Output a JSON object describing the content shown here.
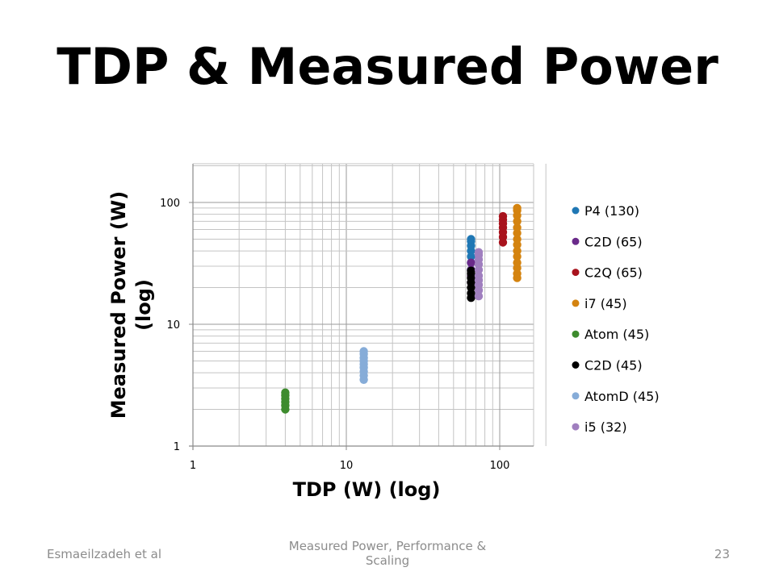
{
  "slide": {
    "title": "TDP & Measured Power",
    "footer_left": "Esmaeilzadeh et al",
    "footer_center": "Measured Power, Performance & Scaling",
    "page_number": "23"
  },
  "chart_data": {
    "type": "scatter",
    "xlabel": "TDP (W) (log)",
    "ylabel": "Measured Power (W) (log)",
    "x_scale": "log",
    "y_scale": "log",
    "xlim": [
      1,
      200
    ],
    "ylim": [
      1,
      200
    ],
    "x_ticks": [
      "1",
      "10",
      "100"
    ],
    "y_ticks": [
      "1",
      "10",
      "100"
    ],
    "grid": true,
    "legend": "right",
    "series": [
      {
        "name": "P4 (130)",
        "color": "#1f77b4",
        "x": 65,
        "y": [
          28,
          32,
          36,
          40,
          44,
          48,
          50
        ]
      },
      {
        "name": "C2D (65)",
        "color": "#6a2a8a",
        "x": 65,
        "y": [
          22,
          25,
          28,
          32
        ]
      },
      {
        "name": "C2Q (65)",
        "color": "#a8131d",
        "x": 105,
        "y": [
          47,
          52,
          57,
          62,
          67,
          72,
          77
        ]
      },
      {
        "name": "i7 (45)",
        "color": "#d4830f",
        "x": 130,
        "y": [
          24,
          26,
          29,
          32,
          36,
          40,
          45,
          50,
          56,
          62,
          70,
          78,
          86,
          90
        ]
      },
      {
        "name": "Atom (45)",
        "color": "#3d8b2d",
        "x": 4,
        "y": [
          2.0,
          2.15,
          2.3,
          2.45,
          2.6,
          2.75
        ]
      },
      {
        "name": "C2D (45)",
        "color": "#000000",
        "x": 65,
        "y": [
          16.5,
          18,
          20,
          22,
          24,
          26,
          27.5
        ]
      },
      {
        "name": "AtomD (45)",
        "color": "#86acd8",
        "x": 13,
        "y": [
          3.5,
          3.8,
          4.1,
          4.4,
          4.7,
          5.0,
          5.3,
          5.7,
          6.0
        ]
      },
      {
        "name": "i5 (32)",
        "color": "#a07fbf",
        "x": 73,
        "y": [
          17,
          19,
          21,
          23,
          25,
          28,
          31,
          34,
          37,
          39
        ]
      }
    ]
  }
}
